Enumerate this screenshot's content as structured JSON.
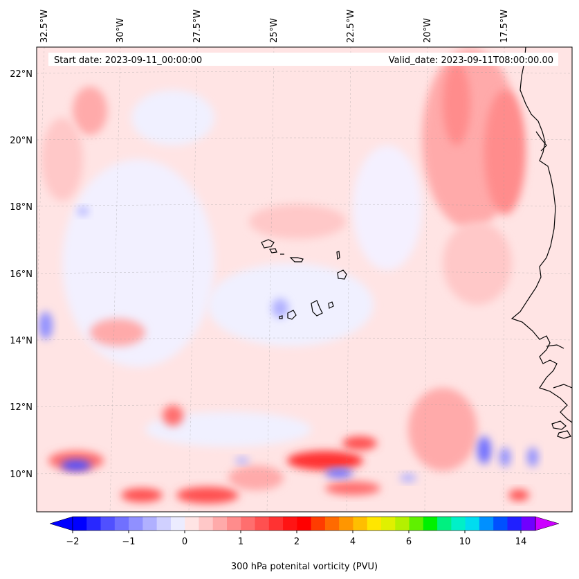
{
  "header": {
    "start_date": "Start date: 2023-09-11_00:00:00",
    "valid_date": "Valid_date: 2023-09-11T08:00:00.00"
  },
  "map": {
    "lon_labels": [
      "32.5°W",
      "30°W",
      "27.5°W",
      "25°W",
      "22.5°W",
      "20°W",
      "17.5°W"
    ],
    "lat_labels": [
      "22°N",
      "20°N",
      "18°N",
      "16°N",
      "14°N",
      "12°N",
      "10°N"
    ],
    "gridlines": true,
    "field": "300 hPa potential vorticity",
    "colors": {
      "background_field": "#ffe4e4",
      "coastline": "#000000"
    }
  },
  "colorbar": {
    "label": "300 hPa potenital vorticity (PVU)",
    "ticks": [
      "−2",
      "−1",
      "0",
      "1",
      "2",
      "4",
      "6",
      "10",
      "14"
    ],
    "low_extend_color": "#0000ff",
    "high_extend_color": "#cc00ff",
    "colors": [
      "#0000ff",
      "#2828ff",
      "#5050ff",
      "#7070ff",
      "#9090ff",
      "#b0b0ff",
      "#d0d0ff",
      "#ececff",
      "#ffe4e4",
      "#ffc8c8",
      "#ffaaaa",
      "#ff8c8c",
      "#ff6e6e",
      "#ff5050",
      "#ff3232",
      "#ff1414",
      "#ff0000",
      "#ff3c00",
      "#ff6a00",
      "#ff9600",
      "#ffbe00",
      "#ffe600",
      "#e0f000",
      "#b4f000",
      "#60f000",
      "#00f000",
      "#00f080",
      "#00f0c8",
      "#00dcf0",
      "#0090ff",
      "#0050ff",
      "#2020ff",
      "#7000ff"
    ]
  }
}
